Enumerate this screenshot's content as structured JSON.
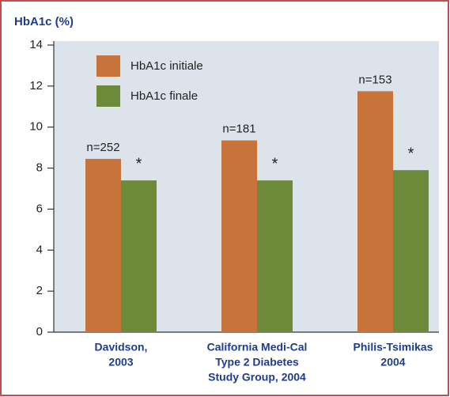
{
  "chart_data": {
    "type": "bar",
    "y_label": "HbA1c (%)",
    "categories": [
      [
        "Davidson,",
        "2003"
      ],
      [
        "California Medi-Cal",
        "Type 2 Diabetes",
        "Study Group, 2004"
      ],
      [
        "Philis-Tsimikas",
        "2004"
      ]
    ],
    "series": [
      {
        "name": "HbA1c initiale",
        "color": "#c8733a",
        "values": [
          8.45,
          9.35,
          11.75
        ]
      },
      {
        "name": "HbA1c finale",
        "color": "#6d8a3a",
        "values": [
          7.4,
          7.4,
          7.9
        ]
      }
    ],
    "annotations": {
      "n_labels": [
        "n=252",
        "n=181",
        "n=153"
      ],
      "significance": [
        "*",
        "*",
        "*"
      ]
    },
    "ylim": [
      0,
      14
    ],
    "yticks": [
      0,
      2,
      4,
      6,
      8,
      10,
      12,
      14
    ],
    "legend": "top-left"
  }
}
